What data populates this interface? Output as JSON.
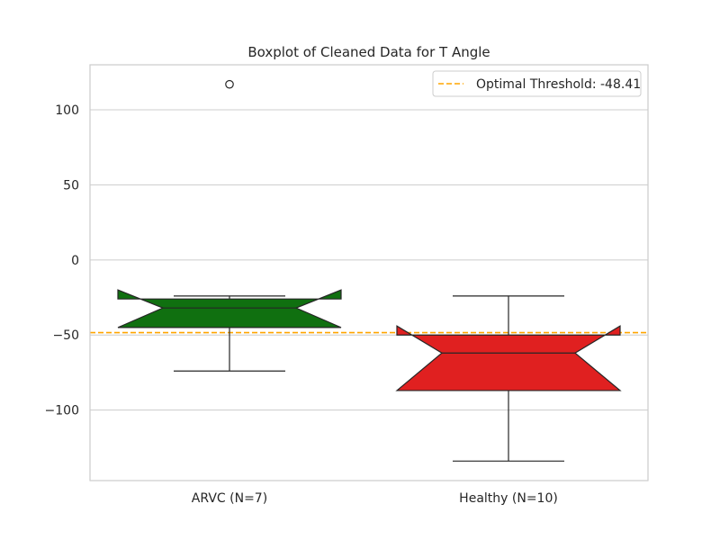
{
  "chart_data": {
    "type": "boxplot",
    "title": "Boxplot of Cleaned Data for T Angle",
    "xlabel": "",
    "ylabel": "",
    "ylim": [
      -147,
      130
    ],
    "yticks": [
      100,
      50,
      0,
      -50,
      -100
    ],
    "ytick_labels": [
      "100",
      "50",
      "0",
      "−50",
      "−100"
    ],
    "grid": "horizontal",
    "notched": true,
    "categories": [
      "ARVC (N=7)",
      "Healthy (N=10)"
    ],
    "boxes": [
      {
        "category": "ARVC (N=7)",
        "color": "#107010",
        "whisker_low": -74,
        "q1": -45,
        "median": -32,
        "q3": -26,
        "whisker_high": -24,
        "notch_low": -45,
        "notch_high": -20,
        "outliers": [
          117
        ]
      },
      {
        "category": "Healthy (N=10)",
        "color": "#e02020",
        "whisker_low": -134,
        "q1": -87,
        "median": -62,
        "q3": -50,
        "whisker_high": -24,
        "notch_low": -87,
        "notch_high": -44,
        "outliers": []
      }
    ],
    "reference_lines": [
      {
        "label": "Optimal Threshold: -48.41",
        "y": -48.41,
        "color": "#ffa500",
        "style": "dashed"
      }
    ],
    "legend": {
      "position": "top-right",
      "entries": [
        "Optimal Threshold: -48.41"
      ]
    }
  }
}
